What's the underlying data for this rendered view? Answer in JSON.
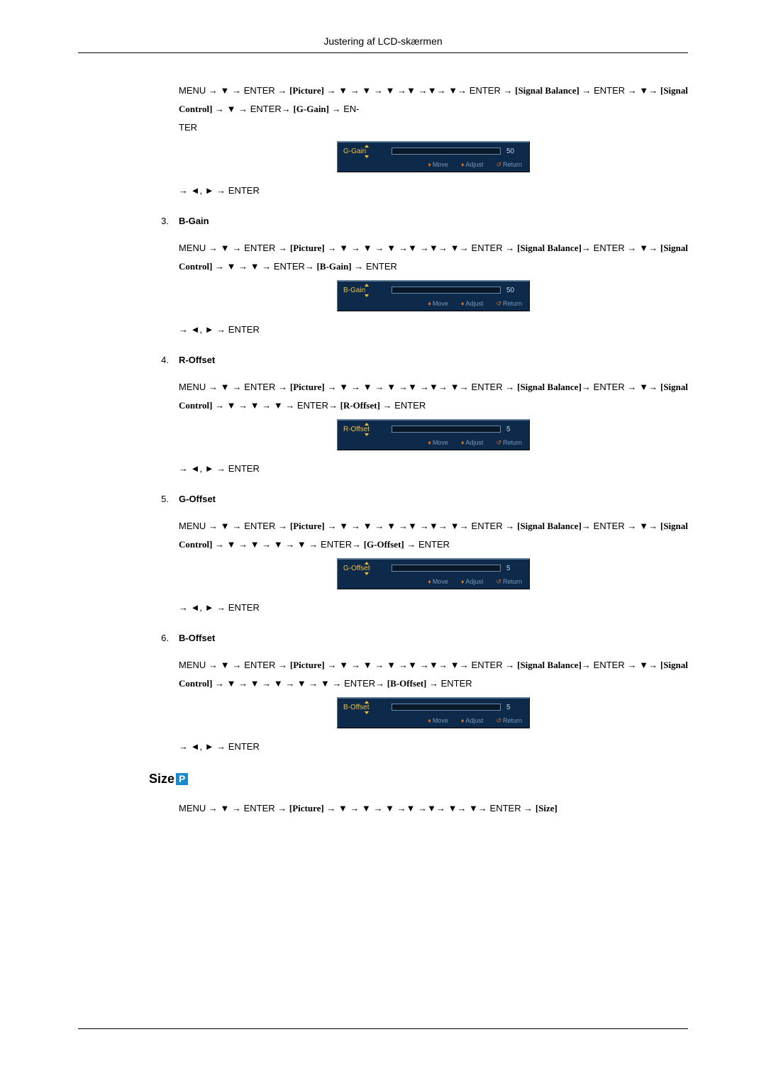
{
  "doc_title": "Justering af LCD-skærmen",
  "tokens": {
    "menu": "MENU",
    "enter": "ENTER",
    "picture": "[Picture]",
    "sig_bal": "[Signal Balance]",
    "sig_ctrl": "[Signal Control]",
    "enter_wrap_a": "EN-",
    "enter_wrap_b": "TER",
    "size": "[Size]",
    "adjust_enter": "→ ◄, ► → ENTER"
  },
  "slider_hints": {
    "move": "Move",
    "adjust": "Adjust",
    "ret": "Return"
  },
  "items": [
    {
      "index": "",
      "title": "",
      "bracket_target": "[G-Gain]",
      "slider_label": "G-Gain",
      "slider_value": "50",
      "slider_fill_pct": 50,
      "down_before_ctrl": 1,
      "down_after_ctrl": 1,
      "trailing_enter_text": "",
      "prefilled": true
    },
    {
      "index": "3.",
      "title": "B-Gain",
      "bracket_target": "[B-Gain]",
      "slider_label": "B-Gain",
      "slider_value": "50",
      "slider_fill_pct": 50,
      "down_before_ctrl": 1,
      "down_after_ctrl": 2,
      "trailing_enter_text": "→ ENTER"
    },
    {
      "index": "4.",
      "title": "R-Offset",
      "bracket_target": "[R-Offset]",
      "slider_label": "R-Offset",
      "slider_value": "5",
      "slider_fill_pct": 6,
      "down_before_ctrl": 1,
      "down_after_ctrl": 3,
      "trailing_enter_text": "→ ENTER"
    },
    {
      "index": "5.",
      "title": "G-Offset",
      "bracket_target": "[G-Offset]",
      "slider_label": "G-Offset",
      "slider_value": "5",
      "slider_fill_pct": 6,
      "down_before_ctrl": 1,
      "down_after_ctrl": 4,
      "trailing_enter_text": "→ ENTER"
    },
    {
      "index": "6.",
      "title": "B-Offset",
      "bracket_target": "[B-Offset]",
      "slider_label": "B-Offset",
      "slider_value": "5",
      "slider_fill_pct": 6,
      "down_before_ctrl": 1,
      "down_after_ctrl": 5,
      "trailing_enter_text": "→ ENTER"
    }
  ],
  "size_section": {
    "heading": "Size",
    "chip": "P"
  }
}
